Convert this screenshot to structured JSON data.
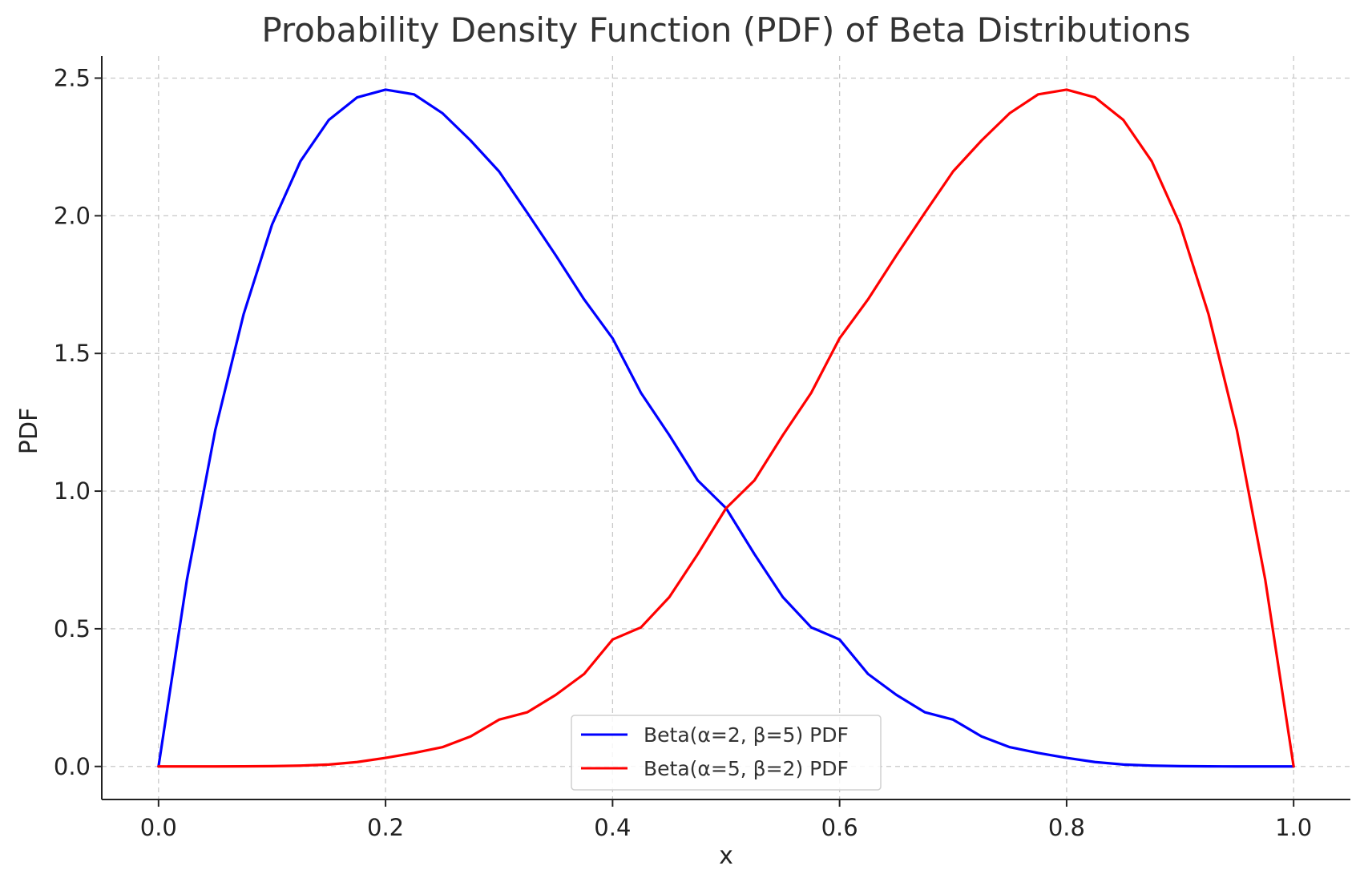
{
  "chart_data": {
    "type": "line",
    "title": "Probability Density Function (PDF) of Beta Distributions",
    "xlabel": "x",
    "ylabel": "PDF",
    "xlim": [
      -0.05,
      1.05
    ],
    "ylim": [
      -0.12,
      2.58
    ],
    "xticks": [
      0.0,
      0.2,
      0.4,
      0.6,
      0.8,
      1.0
    ],
    "xtick_labels": [
      "0.0",
      "0.2",
      "0.4",
      "0.6",
      "0.8",
      "1.0"
    ],
    "yticks": [
      0.0,
      0.5,
      1.0,
      1.5,
      2.0,
      2.5
    ],
    "ytick_labels": [
      "0.0",
      "0.5",
      "1.0",
      "1.5",
      "2.0",
      "2.5"
    ],
    "grid": true,
    "legend_position": "bottom-center",
    "series": [
      {
        "name": "Beta(α=2, β=5) PDF",
        "color": "#0000ff",
        "x": [
          0.0,
          0.025,
          0.05,
          0.075,
          0.1,
          0.125,
          0.15,
          0.175,
          0.2,
          0.225,
          0.25,
          0.275,
          0.3,
          0.325,
          0.35,
          0.375,
          0.4,
          0.425,
          0.45,
          0.475,
          0.5,
          0.525,
          0.55,
          0.575,
          0.6,
          0.625,
          0.65,
          0.675,
          0.7,
          0.725,
          0.75,
          0.775,
          0.8,
          0.825,
          0.85,
          0.875,
          0.9,
          0.925,
          0.95,
          0.975,
          1.0
        ],
        "y": [
          0.0,
          0.678,
          1.222,
          1.643,
          1.968,
          2.198,
          2.348,
          2.43,
          2.458,
          2.441,
          2.373,
          2.273,
          2.161,
          2.01,
          1.856,
          1.696,
          1.555,
          1.357,
          1.203,
          1.039,
          0.938,
          0.771,
          0.615,
          0.505,
          0.461,
          0.336,
          0.26,
          0.197,
          0.17,
          0.109,
          0.07,
          0.049,
          0.031,
          0.016,
          0.007,
          0.003,
          0.001,
          0.0003,
          0.0001,
          0.0,
          0.0
        ]
      },
      {
        "name": "Beta(α=5, β=2) PDF",
        "color": "#ff0000",
        "x": [
          0.0,
          0.025,
          0.05,
          0.075,
          0.1,
          0.125,
          0.15,
          0.175,
          0.2,
          0.225,
          0.25,
          0.275,
          0.3,
          0.325,
          0.35,
          0.375,
          0.4,
          0.425,
          0.45,
          0.475,
          0.5,
          0.525,
          0.55,
          0.575,
          0.6,
          0.625,
          0.65,
          0.675,
          0.7,
          0.725,
          0.75,
          0.775,
          0.8,
          0.825,
          0.85,
          0.875,
          0.9,
          0.925,
          0.95,
          0.975,
          1.0
        ],
        "y": [
          0.0,
          0.0,
          0.0001,
          0.0003,
          0.001,
          0.003,
          0.007,
          0.016,
          0.031,
          0.049,
          0.07,
          0.109,
          0.17,
          0.197,
          0.26,
          0.336,
          0.461,
          0.505,
          0.615,
          0.771,
          0.938,
          1.039,
          1.203,
          1.357,
          1.555,
          1.696,
          1.856,
          2.01,
          2.161,
          2.273,
          2.373,
          2.441,
          2.458,
          2.43,
          2.348,
          2.198,
          1.968,
          1.643,
          1.222,
          0.678,
          0.0
        ]
      }
    ]
  }
}
